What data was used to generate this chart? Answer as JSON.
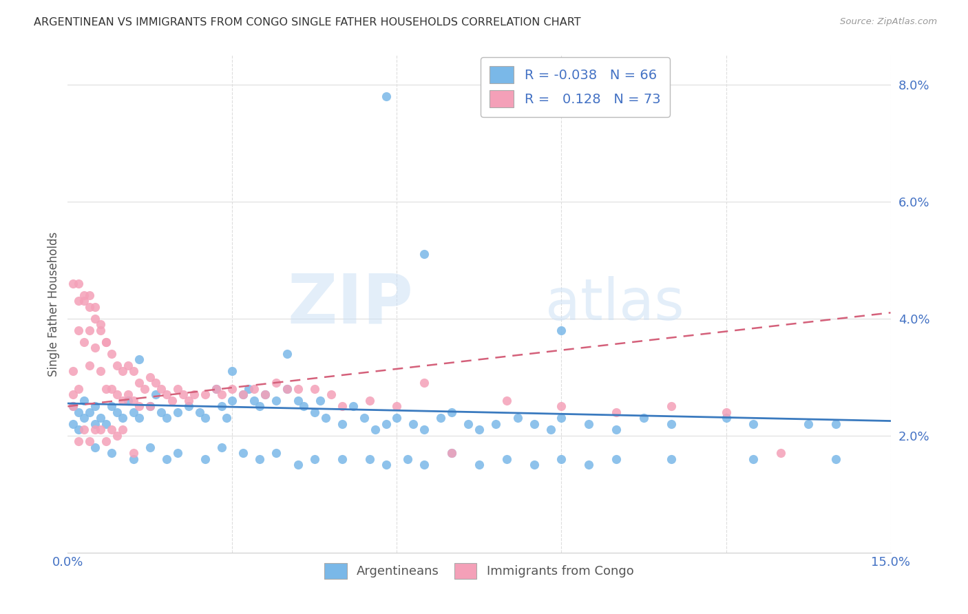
{
  "title": "ARGENTINEAN VS IMMIGRANTS FROM CONGO SINGLE FATHER HOUSEHOLDS CORRELATION CHART",
  "source": "Source: ZipAtlas.com",
  "ylabel": "Single Father Households",
  "xlim": [
    0.0,
    0.15
  ],
  "ylim": [
    0.0,
    0.085
  ],
  "yticks": [
    0.02,
    0.04,
    0.06,
    0.08
  ],
  "ytick_labels": [
    "2.0%",
    "4.0%",
    "6.0%",
    "8.0%"
  ],
  "xticks": [
    0.0,
    0.03,
    0.06,
    0.09,
    0.12,
    0.15
  ],
  "xtick_labels": [
    "0.0%",
    "",
    "",
    "",
    "",
    "15.0%"
  ],
  "watermark_zip": "ZIP",
  "watermark_atlas": "atlas",
  "legend_blue_label": "Argentineans",
  "legend_pink_label": "Immigrants from Congo",
  "R_blue": -0.038,
  "N_blue": 66,
  "R_pink": 0.128,
  "N_pink": 73,
  "blue_color": "#7ab8e8",
  "pink_color": "#f4a0b8",
  "blue_line_color": "#3a7abf",
  "pink_line_color": "#d4607a",
  "background_color": "#ffffff",
  "grid_color": "#dddddd",
  "blue_points_x": [
    0.001,
    0.001,
    0.002,
    0.002,
    0.003,
    0.003,
    0.004,
    0.005,
    0.005,
    0.006,
    0.007,
    0.008,
    0.009,
    0.01,
    0.011,
    0.012,
    0.013,
    0.015,
    0.016,
    0.017,
    0.018,
    0.02,
    0.022,
    0.024,
    0.025,
    0.027,
    0.028,
    0.029,
    0.03,
    0.032,
    0.033,
    0.034,
    0.035,
    0.036,
    0.038,
    0.04,
    0.042,
    0.043,
    0.045,
    0.046,
    0.047,
    0.05,
    0.052,
    0.054,
    0.056,
    0.058,
    0.06,
    0.063,
    0.065,
    0.068,
    0.07,
    0.073,
    0.075,
    0.078,
    0.082,
    0.085,
    0.088,
    0.09,
    0.095,
    0.1,
    0.105,
    0.11,
    0.12,
    0.125,
    0.135,
    0.14
  ],
  "blue_points_y": [
    0.025,
    0.022,
    0.024,
    0.021,
    0.023,
    0.026,
    0.024,
    0.022,
    0.025,
    0.023,
    0.022,
    0.025,
    0.024,
    0.023,
    0.026,
    0.024,
    0.023,
    0.025,
    0.027,
    0.024,
    0.023,
    0.024,
    0.025,
    0.024,
    0.023,
    0.028,
    0.025,
    0.023,
    0.026,
    0.027,
    0.028,
    0.026,
    0.025,
    0.027,
    0.026,
    0.028,
    0.026,
    0.025,
    0.024,
    0.026,
    0.023,
    0.022,
    0.025,
    0.023,
    0.021,
    0.022,
    0.023,
    0.022,
    0.021,
    0.023,
    0.024,
    0.022,
    0.021,
    0.022,
    0.023,
    0.022,
    0.021,
    0.023,
    0.022,
    0.021,
    0.023,
    0.022,
    0.023,
    0.022,
    0.022,
    0.022
  ],
  "blue_points_y_outliers": [
    0.078,
    0.051,
    0.038,
    0.034,
    0.031,
    0.033
  ],
  "blue_points_x_outliers": [
    0.058,
    0.065,
    0.09,
    0.04,
    0.03,
    0.013
  ],
  "blue_low_x": [
    0.005,
    0.008,
    0.012,
    0.015,
    0.018,
    0.02,
    0.025,
    0.028,
    0.032,
    0.035,
    0.038,
    0.042,
    0.045,
    0.05,
    0.055,
    0.058,
    0.062,
    0.065,
    0.07,
    0.075,
    0.08,
    0.085,
    0.09,
    0.095,
    0.1,
    0.11,
    0.125,
    0.14
  ],
  "blue_low_y": [
    0.018,
    0.017,
    0.016,
    0.018,
    0.016,
    0.017,
    0.016,
    0.018,
    0.017,
    0.016,
    0.017,
    0.015,
    0.016,
    0.016,
    0.016,
    0.015,
    0.016,
    0.015,
    0.017,
    0.015,
    0.016,
    0.015,
    0.016,
    0.015,
    0.016,
    0.016,
    0.016,
    0.016
  ],
  "pink_points_x": [
    0.001,
    0.001,
    0.001,
    0.002,
    0.002,
    0.002,
    0.003,
    0.003,
    0.004,
    0.004,
    0.004,
    0.005,
    0.005,
    0.006,
    0.006,
    0.007,
    0.007,
    0.008,
    0.008,
    0.009,
    0.009,
    0.01,
    0.01,
    0.011,
    0.011,
    0.012,
    0.012,
    0.013,
    0.013,
    0.014,
    0.015,
    0.015,
    0.016,
    0.017,
    0.018,
    0.019,
    0.02,
    0.021,
    0.022,
    0.023,
    0.025,
    0.027,
    0.028,
    0.03,
    0.032,
    0.034,
    0.036,
    0.038,
    0.04,
    0.042,
    0.045,
    0.048,
    0.05,
    0.055,
    0.06,
    0.065,
    0.07,
    0.08,
    0.09,
    0.1,
    0.11,
    0.12,
    0.13,
    0.002,
    0.003,
    0.004,
    0.005,
    0.006,
    0.007,
    0.008,
    0.009,
    0.01,
    0.012
  ],
  "pink_points_y": [
    0.027,
    0.031,
    0.025,
    0.043,
    0.038,
    0.028,
    0.043,
    0.036,
    0.044,
    0.038,
    0.032,
    0.042,
    0.035,
    0.039,
    0.031,
    0.036,
    0.028,
    0.034,
    0.028,
    0.032,
    0.027,
    0.031,
    0.026,
    0.032,
    0.027,
    0.031,
    0.026,
    0.029,
    0.025,
    0.028,
    0.03,
    0.025,
    0.029,
    0.028,
    0.027,
    0.026,
    0.028,
    0.027,
    0.026,
    0.027,
    0.027,
    0.028,
    0.027,
    0.028,
    0.027,
    0.028,
    0.027,
    0.029,
    0.028,
    0.028,
    0.028,
    0.027,
    0.025,
    0.026,
    0.025,
    0.029,
    0.017,
    0.026,
    0.025,
    0.024,
    0.025,
    0.024,
    0.017,
    0.019,
    0.021,
    0.019,
    0.021,
    0.021,
    0.019,
    0.021,
    0.02,
    0.021,
    0.017
  ],
  "pink_high_x": [
    0.001,
    0.002,
    0.003,
    0.004,
    0.005,
    0.006,
    0.007
  ],
  "pink_high_y": [
    0.046,
    0.046,
    0.044,
    0.042,
    0.04,
    0.038,
    0.036
  ],
  "trend_blue_y_start": 0.0255,
  "trend_blue_y_end": 0.0225,
  "trend_pink_y_start": 0.025,
  "trend_pink_y_end": 0.041
}
